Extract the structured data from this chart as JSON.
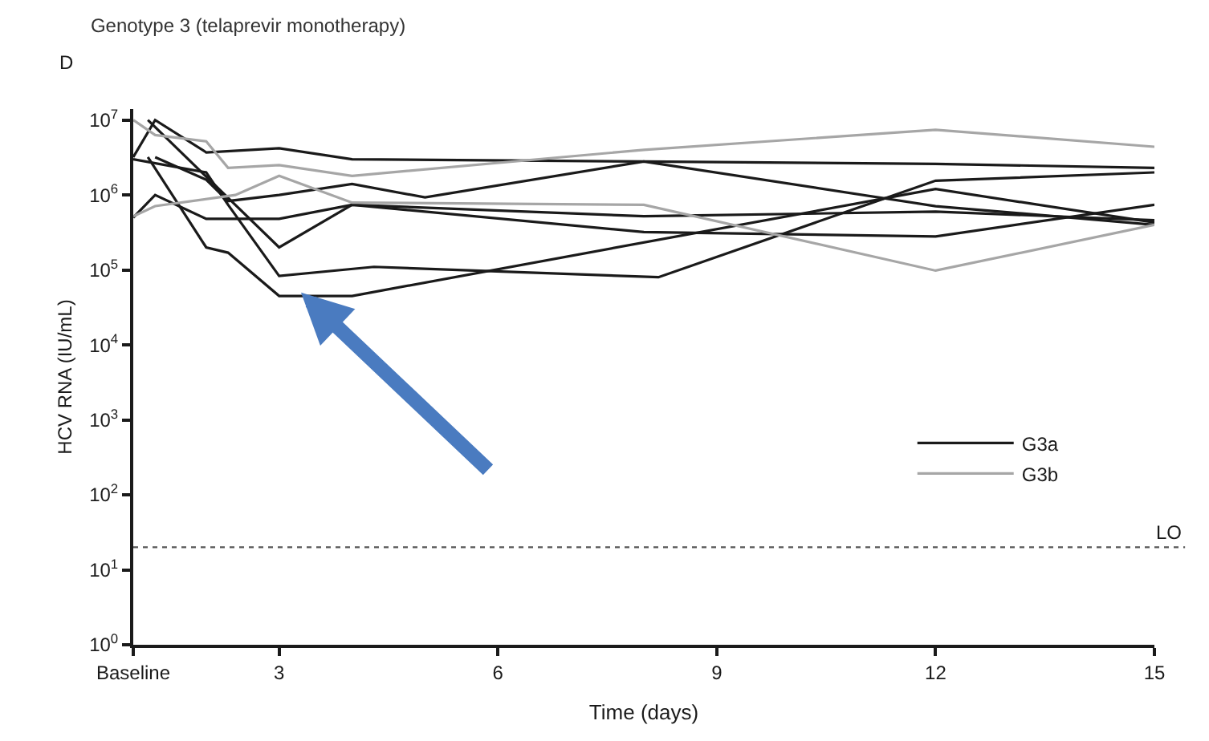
{
  "chart_data": {
    "type": "line",
    "title": "Genotype 3 (telaprevir monotherapy)",
    "annotations": [
      "D"
    ],
    "xlabel": "Time (days)",
    "ylabel": "HCV RNA (IU/mL)",
    "log": "y",
    "legend": "right",
    "marker": "none",
    "line_style": "solid",
    "xlim": [
      1,
      15
    ],
    "xticks": [
      {
        "value": 1,
        "label": "Baseline"
      },
      3,
      6,
      9,
      12,
      15
    ],
    "ylim": [
      1,
      14000000
    ],
    "yticks": [
      {
        "value": 1,
        "label": "10$^{0}$"
      },
      {
        "value": 10,
        "label": "10$^{1}$"
      },
      {
        "value": 100,
        "label": "10$^{2}$"
      },
      {
        "value": 1000,
        "label": "10$^{3}$"
      },
      {
        "value": 10000,
        "label": "10$^{4}$"
      },
      {
        "value": 100000,
        "label": "10$^{5}$"
      },
      {
        "value": 1000000,
        "label": "10$^{6}$"
      },
      {
        "value": 10000000,
        "label": "10$^{7}$"
      }
    ],
    "ref_lines": [
      {
        "axis": "y",
        "value": 20,
        "label": "LO",
        "color": "#555555",
        "line_style": "dotted"
      }
    ],
    "series": [
      {
        "name": "G3a",
        "color": "#1a1a1a",
        "x": [
          1,
          1.3,
          2,
          3,
          4,
          8,
          12,
          15
        ],
        "values": [
          3200000,
          10000000,
          3700000,
          4200000,
          3000000,
          2800000,
          2600000,
          2300000
        ]
      },
      {
        "color": "#1a1a1a",
        "x": [
          1,
          2,
          2.3,
          3,
          4.3,
          8.2,
          12,
          15
        ],
        "values": [
          3000000,
          2000000,
          740000,
          83000,
          110000,
          80000,
          1550000,
          2000000
        ]
      },
      {
        "color": "#1a1a1a",
        "x": [
          1.2,
          2,
          2.3,
          3,
          4,
          12,
          15
        ],
        "values": [
          3200000,
          200000,
          170000,
          45000,
          45000,
          1200000,
          430000
        ]
      },
      {
        "color": "#1a1a1a",
        "x": [
          1.2,
          3,
          4,
          8,
          12,
          15
        ],
        "values": [
          10000000,
          200000,
          740000,
          320000,
          280000,
          740000
        ]
      },
      {
        "color": "#1a1a1a",
        "x": [
          1,
          1.3,
          2,
          3,
          4,
          8,
          12,
          15
        ],
        "values": [
          500000,
          1000000,
          480000,
          480000,
          740000,
          520000,
          600000,
          460000
        ]
      },
      {
        "color": "#1a1a1a",
        "x": [
          1.3,
          2,
          2.3,
          3,
          4,
          5,
          8,
          12,
          15
        ],
        "values": [
          3200000,
          1600000,
          830000,
          1000000,
          1400000,
          930000,
          2800000,
          710000,
          400000
        ]
      },
      {
        "name": "G3b",
        "color": "#a6a6a6",
        "x": [
          1,
          1.3,
          2,
          2.3,
          3,
          4,
          8,
          12,
          15
        ],
        "values": [
          10000000,
          6300000,
          5200000,
          2300000,
          2500000,
          1800000,
          4000000,
          7400000,
          4400000
        ]
      },
      {
        "color": "#a6a6a6",
        "x": [
          1,
          1.3,
          2.4,
          3,
          4,
          8,
          12,
          15
        ],
        "values": [
          520000,
          710000,
          1000000,
          1800000,
          790000,
          740000,
          98000,
          400000
        ]
      }
    ]
  }
}
